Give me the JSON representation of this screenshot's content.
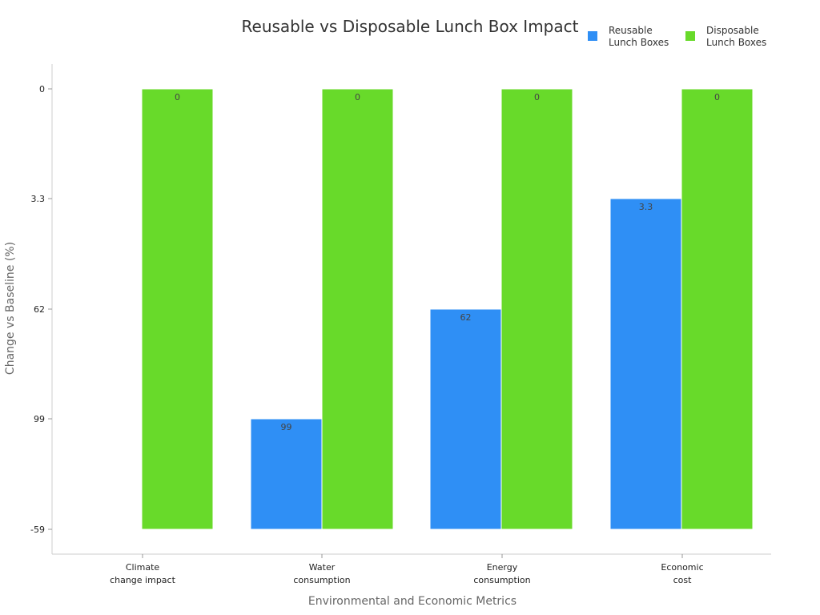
{
  "chart_data": {
    "type": "bar",
    "title": "Reusable vs Disposable Lunch Box Impact",
    "xlabel": "Environmental and Economic Metrics",
    "ylabel": "Change vs Baseline (%)",
    "categories": [
      [
        "Climate",
        "change impact"
      ],
      [
        "Water",
        "consumption"
      ],
      [
        "Energy",
        "consumption"
      ],
      [
        "Economic",
        "cost"
      ]
    ],
    "y_ticks": [
      "0",
      "3.3",
      "62",
      "99",
      "-59"
    ],
    "series": [
      {
        "name": [
          "Reusable",
          "Lunch Boxes"
        ],
        "color": "#2F8FF5",
        "values": [
          -59,
          99,
          62,
          3.3
        ],
        "labels": [
          "",
          "99",
          "62",
          "3.3"
        ]
      },
      {
        "name": [
          "Disposable",
          "Lunch Boxes"
        ],
        "color": "#68DA2A",
        "values": [
          0,
          0,
          0,
          0
        ],
        "labels": [
          "0",
          "0",
          "0",
          "0"
        ]
      }
    ],
    "bar_base": -59,
    "legend": "top-right",
    "grid": false
  }
}
